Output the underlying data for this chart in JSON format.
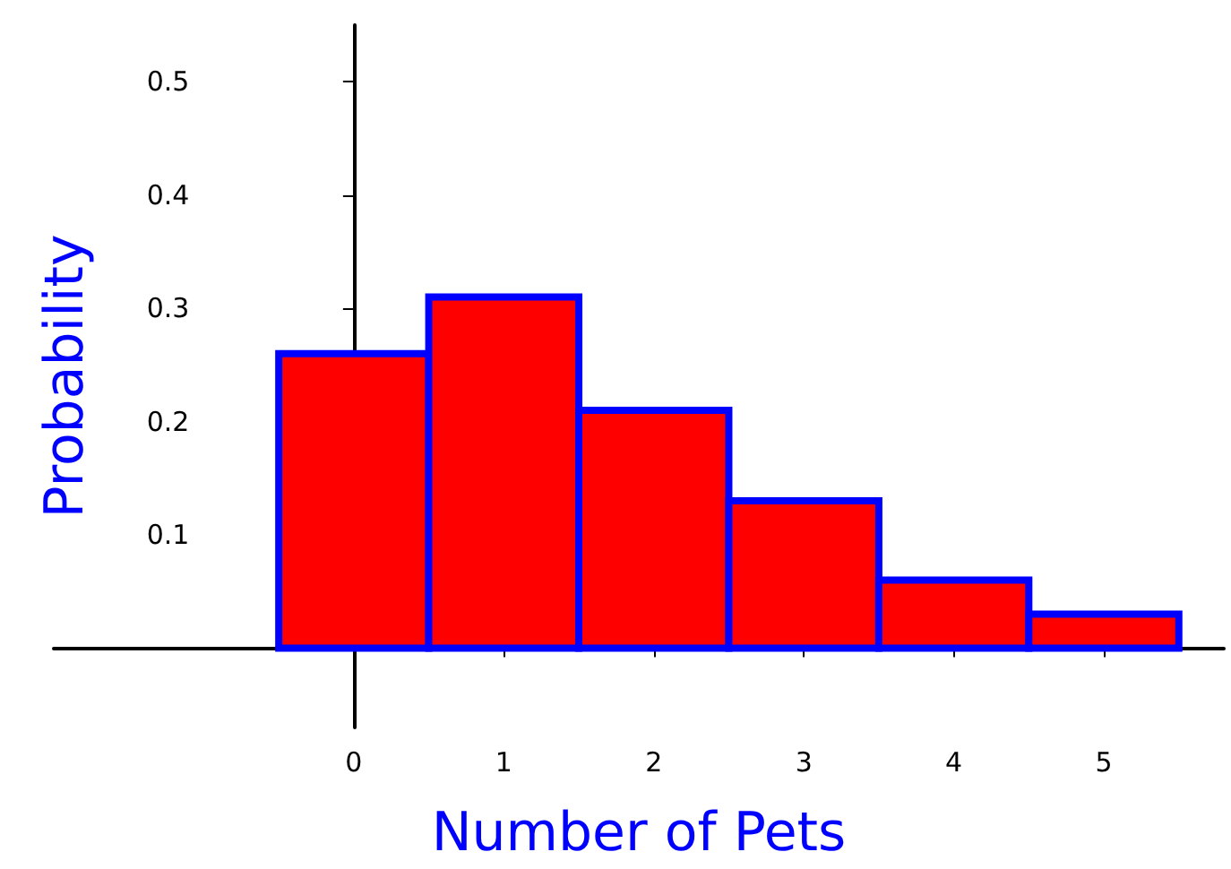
{
  "chart_data": {
    "type": "histogram",
    "xlabel": "Number of Pets",
    "ylabel": "Probability",
    "bins": [
      -0.5,
      0.5,
      1.5,
      2.5,
      3.5,
      4.5,
      5.5
    ],
    "values": [
      0.26,
      0.31,
      0.21,
      0.13,
      0.06,
      0.03
    ],
    "color": "#ff0000",
    "xlim": [
      -2,
      5.8
    ],
    "xticks": [
      0,
      1,
      2,
      3,
      4,
      5
    ],
    "ylim": [
      -0.07,
      0.55
    ],
    "yticks": [
      0.1,
      0.2,
      0.3,
      0.4,
      0.5
    ],
    "tick_labels": true
  }
}
